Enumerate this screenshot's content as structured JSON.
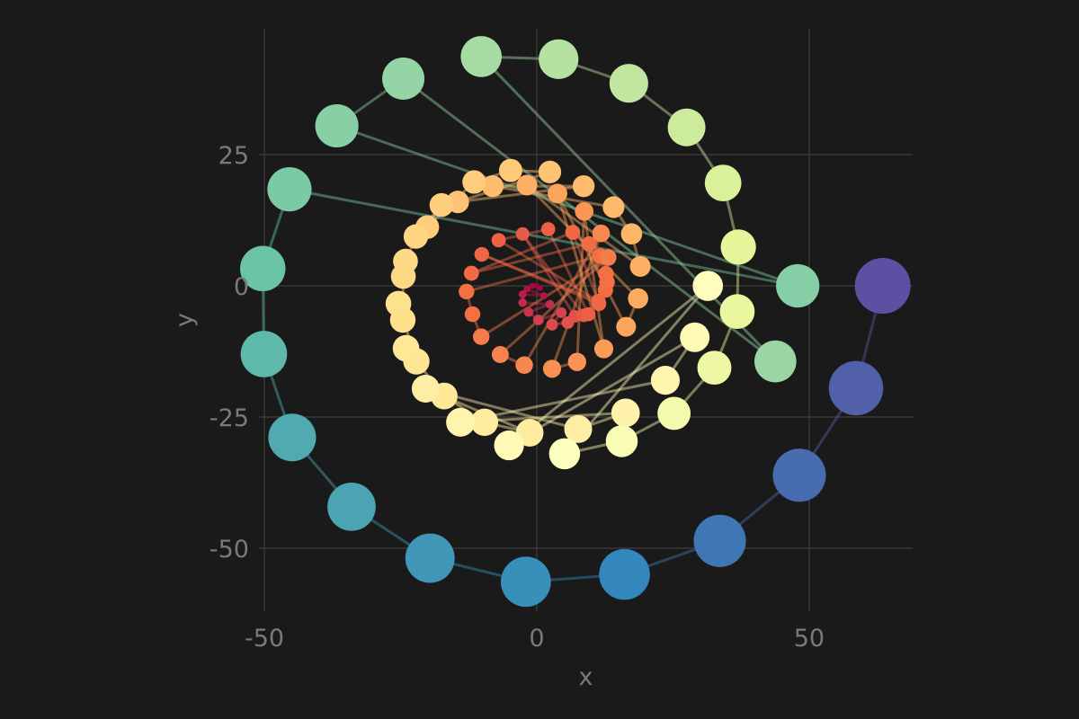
{
  "chart_data": {
    "type": "scatter",
    "title": "",
    "xlabel": "x",
    "ylabel": "y",
    "xlim": [
      -51,
      69
    ],
    "ylim": [
      -62,
      49
    ],
    "grid": true,
    "x_ticks": [
      {
        "value": -50,
        "label": "-50"
      },
      {
        "value": 0,
        "label": "0"
      },
      {
        "value": 50,
        "label": "50"
      }
    ],
    "y_ticks": [
      {
        "value": -50,
        "label": "-50"
      },
      {
        "value": -25,
        "label": "-25"
      },
      {
        "value": 0,
        "label": "0"
      },
      {
        "value": 25,
        "label": "25"
      }
    ],
    "background": "#1a1a1a",
    "colormap": "Spectral",
    "description_of_encoding": "",
    "spiral": {
      "start_angle_deg": 0,
      "step_deg": 15,
      "turns": 7,
      "radius_growth_per_turn": 9.2
    },
    "points": [
      {
        "x": 63.5,
        "y": 0.0
      },
      {
        "x": 58.6,
        "y": -19.5
      },
      {
        "x": 48.2,
        "y": -36.1
      },
      {
        "x": 33.6,
        "y": -48.6
      },
      {
        "x": 16.1,
        "y": -55.0
      },
      {
        "x": -2.0,
        "y": -56.4
      },
      {
        "x": -19.6,
        "y": -51.9
      },
      {
        "x": -34.0,
        "y": -42.1
      },
      {
        "x": -44.9,
        "y": -28.9
      },
      {
        "x": -50.1,
        "y": -13.0
      },
      {
        "x": -50.3,
        "y": 3.3
      },
      {
        "x": -45.4,
        "y": 18.4
      },
      {
        "x": -36.7,
        "y": 30.5
      },
      {
        "x": -24.5,
        "y": 39.5
      },
      {
        "x": -10.2,
        "y": 43.7
      },
      {
        "x": 4.0,
        "y": 43.2
      },
      {
        "x": 16.9,
        "y": 38.6
      },
      {
        "x": 27.5,
        "y": 30.2
      },
      {
        "x": 34.2,
        "y": 19.6
      },
      {
        "x": 37.0,
        "y": 7.4
      },
      {
        "x": 36.8,
        "y": -4.9
      },
      {
        "x": 32.6,
        "y": -15.6
      },
      {
        "x": 25.2,
        "y": -24.3
      },
      {
        "x": 15.6,
        "y": -29.6
      },
      {
        "x": 5.1,
        "y": -32.0
      },
      {
        "x": -5.1,
        "y": -30.4
      },
      {
        "x": -14.0,
        "y": -26.0
      },
      {
        "x": -20.4,
        "y": -19.6
      },
      {
        "x": -24.0,
        "y": -11.9
      },
      {
        "x": -25.4,
        "y": -3.4
      },
      {
        "x": -24.1,
        "y": 4.7
      },
      {
        "x": -20.1,
        "y": 11.2
      },
      {
        "x": -14.5,
        "y": 16.0
      },
      {
        "x": -8.1,
        "y": 19.0
      },
      {
        "x": -1.8,
        "y": 19.2
      },
      {
        "x": 3.8,
        "y": 17.6
      },
      {
        "x": 8.7,
        "y": 14.2
      },
      {
        "x": 11.8,
        "y": 10.0
      },
      {
        "x": 13.1,
        "y": 5.4
      },
      {
        "x": 12.9,
        "y": 0.7
      },
      {
        "x": 11.3,
        "y": -2.9
      },
      {
        "x": 8.6,
        "y": -5.6
      },
      {
        "x": 5.7,
        "y": -7.0
      },
      {
        "x": 2.8,
        "y": -7.4
      },
      {
        "x": 0.3,
        "y": -6.5
      },
      {
        "x": -1.5,
        "y": -5.0
      },
      {
        "x": -2.6,
        "y": -3.2
      },
      {
        "x": -2.6,
        "y": -1.6
      },
      {
        "x": -1.8,
        "y": -0.6
      },
      {
        "x": -0.8,
        "y": 0.0
      },
      {
        "x": 0.0,
        "y": 0.0
      },
      {
        "x": 0.6,
        "y": -0.4
      },
      {
        "x": 1.3,
        "y": -1.9
      },
      {
        "x": 2.4,
        "y": -3.5
      },
      {
        "x": 4.5,
        "y": -5.1
      },
      {
        "x": 7.0,
        "y": -5.8
      },
      {
        "x": 9.5,
        "y": -5.4
      },
      {
        "x": 11.4,
        "y": -3.4
      },
      {
        "x": 12.6,
        "y": -0.8
      },
      {
        "x": 12.7,
        "y": 2.3
      },
      {
        "x": 11.6,
        "y": 5.7
      },
      {
        "x": 9.6,
        "y": 8.0
      },
      {
        "x": 6.6,
        "y": 10.2
      },
      {
        "x": 2.1,
        "y": 10.8
      },
      {
        "x": -2.6,
        "y": 9.9
      },
      {
        "x": -7.0,
        "y": 8.7
      },
      {
        "x": -10.1,
        "y": 6.0
      },
      {
        "x": -12.0,
        "y": 2.4
      },
      {
        "x": -12.9,
        "y": -1.1
      },
      {
        "x": -11.8,
        "y": -5.4
      },
      {
        "x": -10.2,
        "y": -9.7
      },
      {
        "x": -6.7,
        "y": -13.1
      },
      {
        "x": -2.3,
        "y": -15.1
      },
      {
        "x": 2.8,
        "y": -15.8
      },
      {
        "x": 7.4,
        "y": -14.5
      },
      {
        "x": 12.3,
        "y": -12.0
      },
      {
        "x": 16.4,
        "y": -7.8
      },
      {
        "x": 18.6,
        "y": -2.4
      },
      {
        "x": 19.0,
        "y": 3.7
      },
      {
        "x": 17.4,
        "y": 9.9
      },
      {
        "x": 14.1,
        "y": 15.0
      },
      {
        "x": 8.6,
        "y": 19.0
      },
      {
        "x": 2.4,
        "y": 21.7
      },
      {
        "x": -4.8,
        "y": 22.0
      },
      {
        "x": -11.5,
        "y": 19.8
      },
      {
        "x": -17.5,
        "y": 15.4
      },
      {
        "x": -22.2,
        "y": 9.4
      },
      {
        "x": -24.5,
        "y": 1.8
      },
      {
        "x": -24.6,
        "y": -6.5
      },
      {
        "x": -22.1,
        "y": -14.4
      },
      {
        "x": -17.0,
        "y": -21.0
      },
      {
        "x": -9.6,
        "y": -26.0
      },
      {
        "x": -1.3,
        "y": -28.0
      },
      {
        "x": 7.6,
        "y": -27.3
      },
      {
        "x": 16.3,
        "y": -24.2
      },
      {
        "x": 23.6,
        "y": -18.0
      },
      {
        "x": 29.0,
        "y": -9.8
      },
      {
        "x": 31.4,
        "y": 0.0
      },
      {
        "x": 43.8,
        "y": -14.4
      },
      {
        "x": 47.9,
        "y": 0.0
      }
    ]
  }
}
